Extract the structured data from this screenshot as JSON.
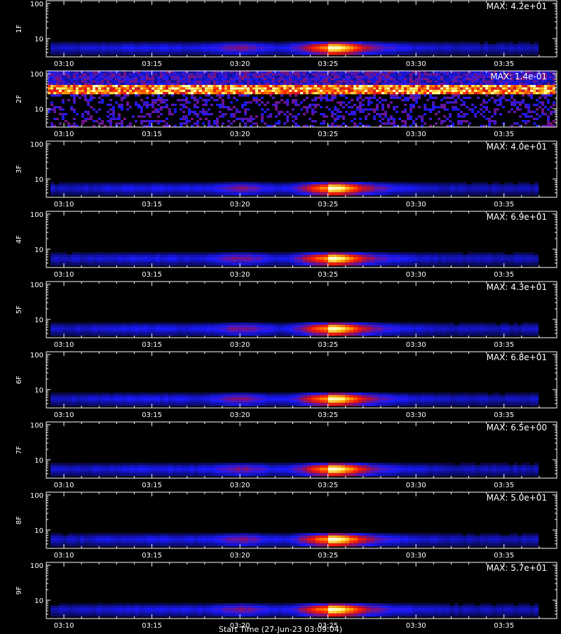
{
  "chart_data": {
    "type": "heatmap",
    "x_axis": {
      "range": [
        "03:09",
        "03:38"
      ],
      "ticks": [
        "03:10",
        "03:15",
        "03:20",
        "03:25",
        "03:30",
        "03:35"
      ],
      "label": "Start Time (27-Jun-23 03:09:04)"
    },
    "y_axis": {
      "scale": "log",
      "range": [
        3,
        120
      ],
      "ticks": [
        "10",
        "100"
      ]
    },
    "colormap": [
      "#000000",
      "#1a1aff",
      "#b01040",
      "#ff2000",
      "#ffa000",
      "#ffff80",
      "#ffffff"
    ],
    "panels": [
      {
        "label": "1F",
        "max_text": "MAX: 4.2e+01",
        "max": 42,
        "mode": "burst"
      },
      {
        "label": "2F",
        "max_text": "MAX: 1.4e-01",
        "max": 0.14,
        "mode": "noise"
      },
      {
        "label": "3F",
        "max_text": "MAX: 4.0e+01",
        "max": 40,
        "mode": "burst"
      },
      {
        "label": "4F",
        "max_text": "MAX: 6.9e+01",
        "max": 69,
        "mode": "burst"
      },
      {
        "label": "5F",
        "max_text": "MAX: 4.3e+01",
        "max": 43,
        "mode": "burst"
      },
      {
        "label": "6F",
        "max_text": "MAX: 6.8e+01",
        "max": 68,
        "mode": "burst"
      },
      {
        "label": "7F",
        "max_text": "MAX: 6.5e+00",
        "max": 6.5,
        "mode": "burst"
      },
      {
        "label": "8F",
        "max_text": "MAX: 5.0e+01",
        "max": 50,
        "mode": "burst"
      },
      {
        "label": "9F",
        "max_text": "MAX: 5.7e+01",
        "max": 57,
        "mode": "burst"
      }
    ]
  }
}
